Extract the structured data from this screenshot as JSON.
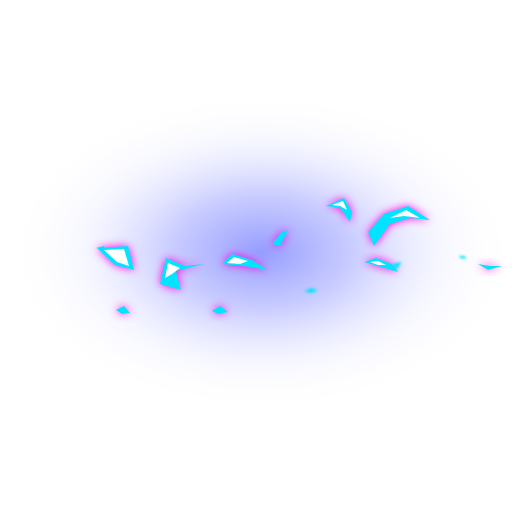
{
  "scene": {
    "background_color": "#ffffff",
    "effect": "glowing-shard-burst",
    "glow_color": "#3f4bff",
    "shard_fill_color": "#ffffff",
    "shard_edge_color": "#00e5ff",
    "shard_halo_color": "#ff00e0",
    "shard_count": 14
  }
}
